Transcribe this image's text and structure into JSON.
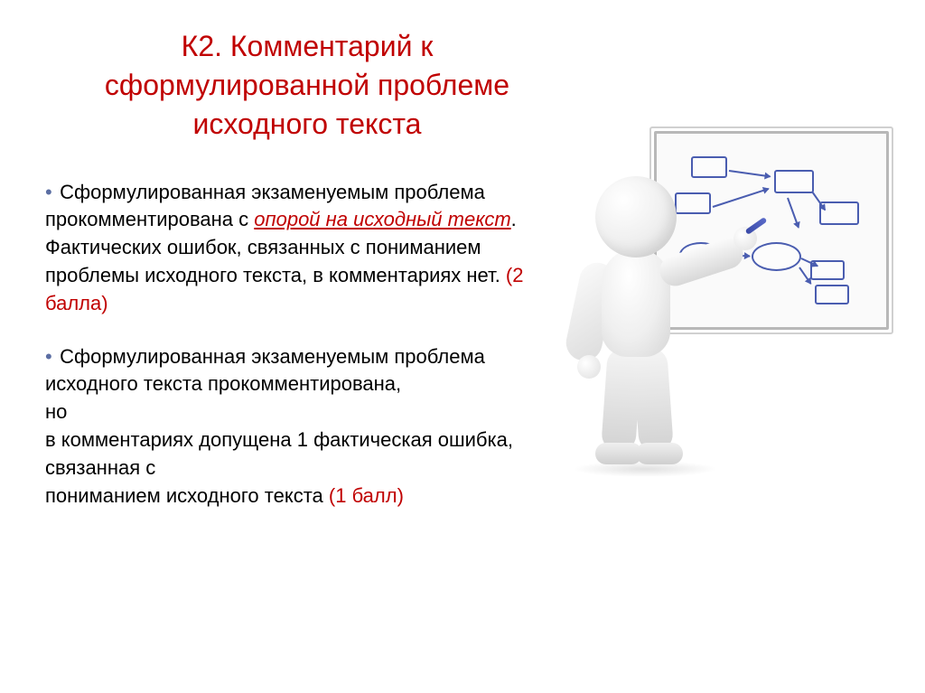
{
  "title_color": "#c00000",
  "body_color": "#000000",
  "score_color": "#c00000",
  "link_color": "#c00000",
  "bullet_color": "#5b6ea3",
  "title": {
    "line1": "К2. Комментарий к",
    "line2": "сформулированной проблеме",
    "line3": "исходного текста"
  },
  "p1": {
    "lead": "Сформулированная экзаменуемым проблема прокомментирована с ",
    "link": "опорой на исходный текст",
    "tail": ".",
    "line2": "Фактических ошибок, связанных с пониманием проблемы исходного текста, в комментариях нет. ",
    "score": "(2 балла)"
  },
  "p2": {
    "line1": " Сформулированная экзаменуемым проблема исходного текста прокомментирована,",
    "line2": "но",
    "line3": "в комментариях допущена 1 фактическая ошибка, связанная с",
    "line4": "пониманием исходного текста ",
    "score": "(1 балл)"
  },
  "diagram": {
    "box_color": "#4a5db0",
    "oval_color": "#4a5db0",
    "arrow_color": "#4a5db0"
  }
}
